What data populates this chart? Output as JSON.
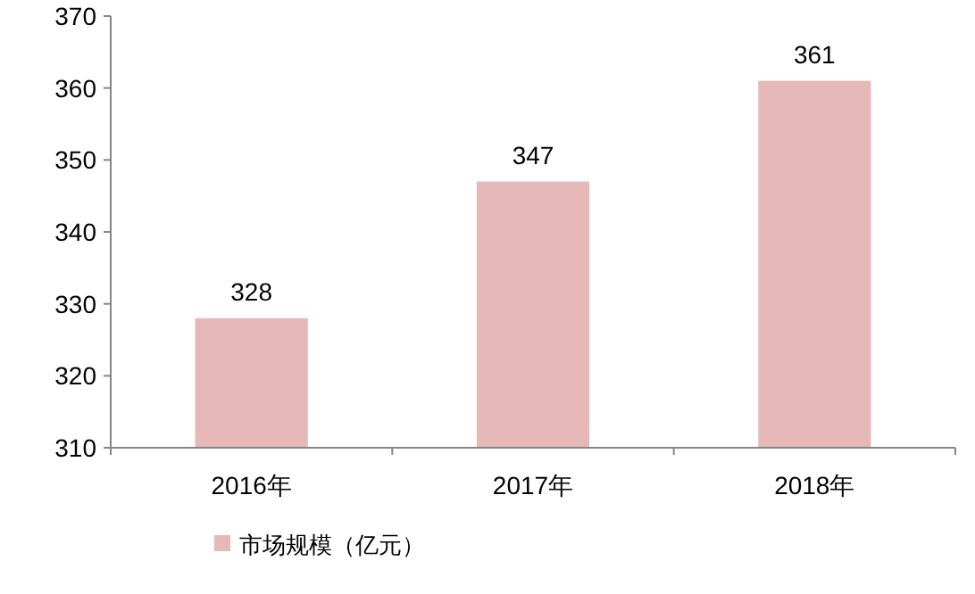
{
  "chart_data": {
    "type": "bar",
    "categories": [
      "2016年",
      "2017年",
      "2018年"
    ],
    "series": [
      {
        "name": "市场规模（亿元）",
        "color": "#e6b8b7",
        "values": [
          328,
          347,
          361
        ]
      }
    ],
    "ylim": [
      310,
      370
    ],
    "yticks": [
      310,
      320,
      330,
      340,
      350,
      360,
      370
    ],
    "data_labels": true,
    "grid": false,
    "legend": "bottom"
  }
}
